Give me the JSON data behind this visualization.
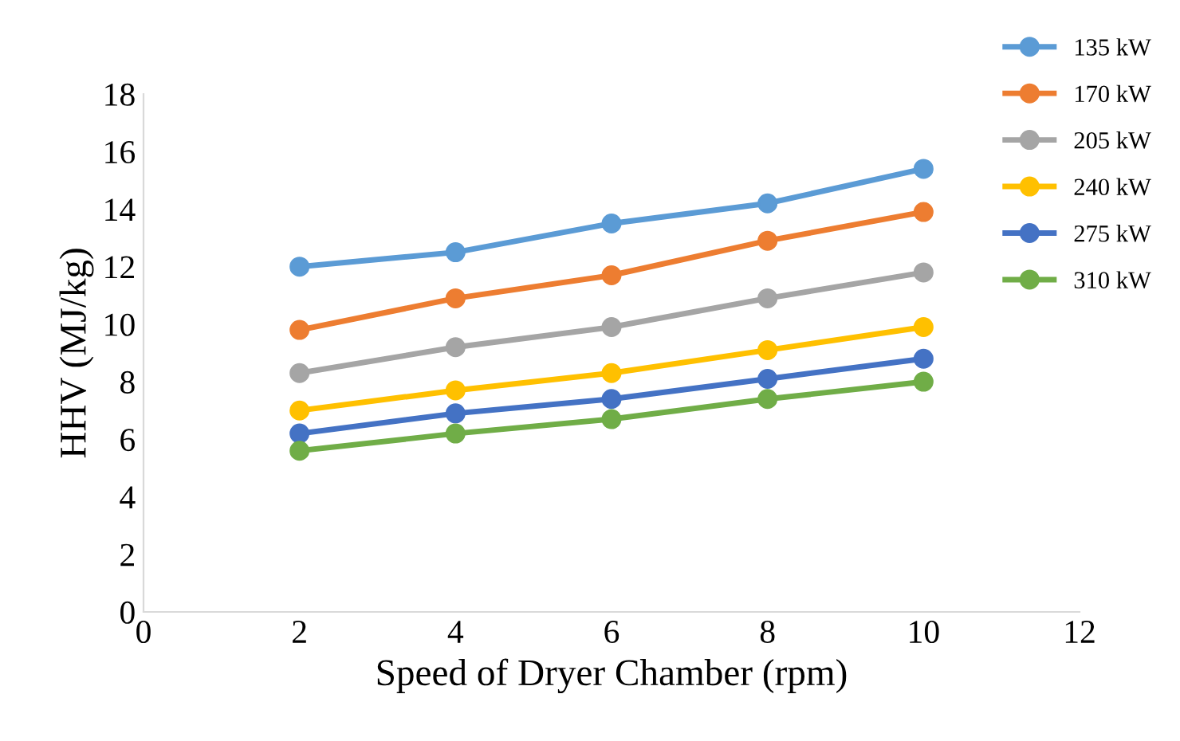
{
  "chart_data": {
    "type": "line",
    "xlabel": "Speed of Dryer Chamber (rpm)",
    "ylabel": "HHV (MJ/kg)",
    "x": [
      2,
      4,
      6,
      8,
      10
    ],
    "series": [
      {
        "name": "135 kW",
        "color": "#5b9bd5",
        "values": [
          12.0,
          12.5,
          13.5,
          14.2,
          15.4
        ]
      },
      {
        "name": "170 kW",
        "color": "#ed7d31",
        "values": [
          9.8,
          10.9,
          11.7,
          12.9,
          13.9
        ]
      },
      {
        "name": "205 kW",
        "color": "#a5a5a5",
        "values": [
          8.3,
          9.2,
          9.9,
          10.9,
          11.8
        ]
      },
      {
        "name": "240 kW",
        "color": "#ffc000",
        "values": [
          7.0,
          7.7,
          8.3,
          9.1,
          9.9
        ]
      },
      {
        "name": "275 kW",
        "color": "#4472c4",
        "values": [
          6.2,
          6.9,
          7.4,
          8.1,
          8.8
        ]
      },
      {
        "name": "310 kW",
        "color": "#70ad47",
        "values": [
          5.6,
          6.2,
          6.7,
          7.4,
          8.0
        ]
      }
    ],
    "xlim": [
      0,
      12
    ],
    "xticks": [
      0,
      2,
      4,
      6,
      8,
      10,
      12
    ],
    "ylim": [
      0,
      18
    ],
    "yticks": [
      0,
      2,
      4,
      6,
      8,
      10,
      12,
      14,
      16,
      18
    ],
    "grid": false,
    "legend": "top right",
    "marker": "circle",
    "line_style": "solid"
  }
}
